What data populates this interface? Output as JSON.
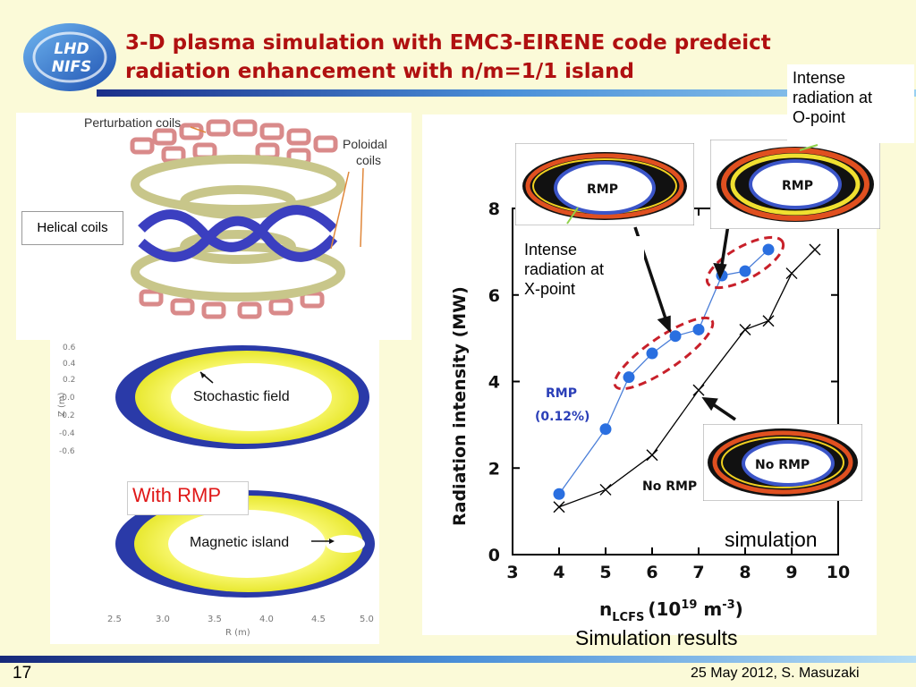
{
  "slide": {
    "title_line1": "3-D plasma simulation with EMC3-EIRENE code predeict",
    "title_line2": "radiation enhancement with n/m=1/1 island",
    "logo_text_top": "LHD",
    "logo_text_bottom": "NIFS",
    "page_number": "17",
    "footer_date": "25 May 2012, S. Masuzaki"
  },
  "left_panel": {
    "perturbation_coils": "Perturbation coils",
    "poloidal_coils_line1": "Poloidal",
    "poloidal_coils_line2": "coils",
    "helical_coils": "Helical coils",
    "stochastic_field": "Stochastic field",
    "magnetic_island": "Magnetic island",
    "with_rmp": "With RMP",
    "z_axis_label": "Z (m)",
    "r_axis_label": "R (m)",
    "z_ticks": [
      "0.6",
      "0.4",
      "0.2",
      "-0.0",
      "-0.2",
      "-0.4",
      "-0.6"
    ],
    "r_ticks": [
      "2.5",
      "3.0",
      "3.5",
      "4.0",
      "4.5",
      "5.0"
    ],
    "colors": {
      "plasma_blue": "#2a3aa8",
      "field_yellow": "#f2f23a",
      "coil_tan": "#d7d59a",
      "coil_pink": "#d98a8a",
      "helical_blue": "#3b3fc0"
    }
  },
  "right_panel": {
    "intense_o_point_l1": "Intense",
    "intense_o_point_l2": "radiation at",
    "intense_o_point_l3": "O-point",
    "intense_x_point_l1": "Intense",
    "intense_x_point_l2": "radiation at",
    "intense_x_point_l3": "X-point",
    "rmp_inset_label_1": "RMP",
    "rmp_inset_label_2": "RMP",
    "no_rmp_inset_label": "No RMP",
    "simulation_label": "simulation",
    "simulation_results": "Simulation results"
  },
  "chart_data": {
    "type": "line",
    "xlabel_main": "n",
    "xlabel_sub": "LCFS",
    "xlabel_units": "(10",
    "xlabel_exp": "19",
    "xlabel_units2": " m",
    "xlabel_exp2": "-3",
    "xlabel_close": ")",
    "ylabel": "Radiation intensity (MW)",
    "xlim": [
      3,
      10
    ],
    "ylim": [
      0,
      8
    ],
    "x_ticks": [
      "3",
      "4",
      "5",
      "6",
      "7",
      "8",
      "9",
      "10"
    ],
    "y_ticks": [
      "0",
      "2",
      "4",
      "6",
      "8"
    ],
    "series": [
      {
        "label_line1": "RMP",
        "label_line2": "(0.12%)",
        "color": "#2a6fe0",
        "marker": "circle",
        "x": [
          4.0,
          5.0,
          5.5,
          6.0,
          6.5,
          7.0,
          7.5,
          8.0,
          8.5
        ],
        "y": [
          1.4,
          2.9,
          4.1,
          4.65,
          5.05,
          5.2,
          6.45,
          6.55,
          7.05
        ]
      },
      {
        "label_line1": "No RMP",
        "color": "#000000",
        "marker": "x",
        "x": [
          4.0,
          5.0,
          6.0,
          7.0,
          8.0,
          8.5,
          9.0,
          9.5
        ],
        "y": [
          1.1,
          1.5,
          2.3,
          3.8,
          5.2,
          5.4,
          6.5,
          7.05
        ]
      }
    ],
    "highlight_color": "#c8202a"
  }
}
